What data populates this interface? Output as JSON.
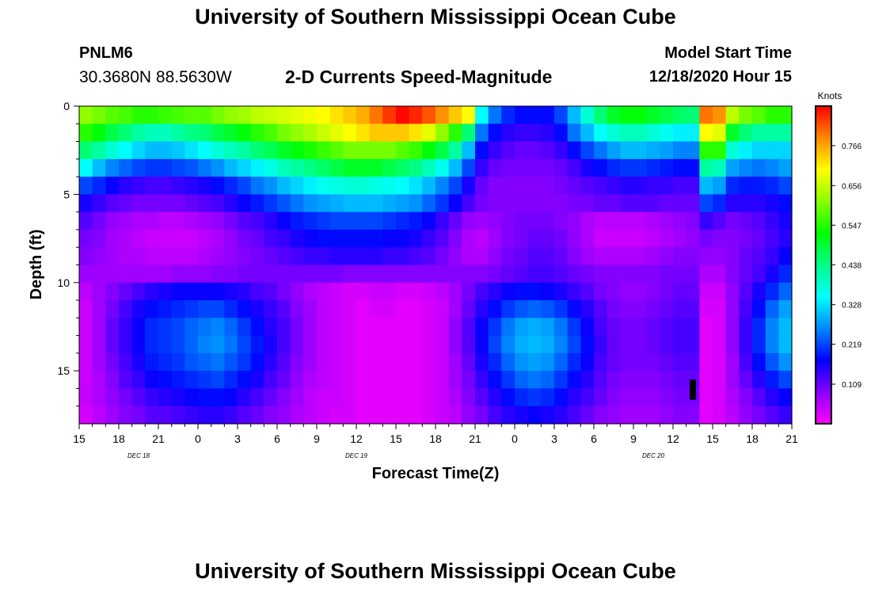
{
  "header": {
    "title": "University of Southern Mississippi Ocean Cube",
    "station_id": "PNLM6",
    "coordinates": "30.3680N 88.5630W",
    "subtitle": "2-D Currents Speed-Magnitude",
    "model_start_label": "Model Start Time",
    "model_start_value": "12/18/2020 Hour 15"
  },
  "footer": {
    "title": "University of Southern Mississippi Ocean Cube"
  },
  "colors": {
    "background": "#ffffff",
    "axis": "#000000",
    "marker": "#000000"
  },
  "chart_data": {
    "type": "heatmap",
    "xlabel": "Forecast Time(Z)",
    "ylabel": "Depth (ft)",
    "x_hours_range": [
      0,
      54
    ],
    "y_depth_range": [
      0,
      18
    ],
    "x_ticks": [
      "15",
      "18",
      "21",
      "0",
      "3",
      "6",
      "9",
      "12",
      "15",
      "18",
      "21",
      "0",
      "3",
      "6",
      "9",
      "12",
      "15",
      "18",
      "21"
    ],
    "y_ticks": [
      0,
      5,
      10,
      15
    ],
    "date_labels": [
      {
        "label": "DEC 18",
        "hour": 4.5
      },
      {
        "label": "DEC 19",
        "hour": 21
      },
      {
        "label": "DEC 20",
        "hour": 43.5
      }
    ],
    "colorbar": {
      "title": "Knots",
      "min": 0,
      "max": 0.875,
      "ticks": [
        "0.766",
        "0.656",
        "0.547",
        "0.438",
        "0.328",
        "0.219",
        "0.109"
      ],
      "tick_values": [
        0.766,
        0.656,
        0.547,
        0.438,
        0.328,
        0.219,
        0.109
      ],
      "colormap": [
        "#ff00ff",
        "#8800ff",
        "#0000ff",
        "#0088ff",
        "#00ffff",
        "#00ff88",
        "#00ff00",
        "#88ff00",
        "#ffff00",
        "#ff8800",
        "#ff0000"
      ]
    },
    "depth_layers_ft": [
      0.5,
      1.5,
      2.5,
      3.5,
      4.5,
      5.5,
      6.5,
      7.5,
      8.5,
      9.5,
      10.5,
      11.5,
      12.5,
      13.5,
      14.5,
      15.5,
      16.5,
      17.5
    ],
    "series": [
      {
        "hours": [
          0,
          1,
          2,
          3,
          4,
          5,
          6,
          7,
          8,
          9,
          10,
          11,
          12,
          13,
          14,
          15,
          16,
          17,
          18,
          19,
          20,
          21,
          22,
          23,
          24,
          25,
          26,
          27,
          28,
          29,
          30,
          31,
          32,
          33,
          34,
          35,
          36,
          37,
          38,
          39,
          40,
          41,
          42,
          43,
          44,
          45,
          46,
          47,
          48,
          49,
          50,
          51,
          52,
          53
        ]
      },
      {
        "knots_row_0": [
          0.62,
          0.6,
          0.58,
          0.57,
          0.55,
          0.55,
          0.56,
          0.57,
          0.58,
          0.58,
          0.6,
          0.62,
          0.63,
          0.65,
          0.66,
          0.67,
          0.68,
          0.69,
          0.7,
          0.72,
          0.74,
          0.76,
          0.8,
          0.84,
          0.87,
          0.85,
          0.82,
          0.78,
          0.74,
          0.7,
          0.35,
          0.25,
          0.2,
          0.18,
          0.18,
          0.18,
          0.22,
          0.3,
          0.38,
          0.45,
          0.5,
          0.52,
          0.52,
          0.5,
          0.48,
          0.46,
          0.45,
          0.8,
          0.78,
          0.65,
          0.6,
          0.58,
          0.55,
          0.55
        ]
      },
      {
        "knots_row_1": [
          0.55,
          0.52,
          0.48,
          0.45,
          0.42,
          0.4,
          0.4,
          0.42,
          0.44,
          0.45,
          0.48,
          0.5,
          0.52,
          0.55,
          0.57,
          0.6,
          0.62,
          0.64,
          0.66,
          0.68,
          0.7,
          0.72,
          0.74,
          0.74,
          0.74,
          0.72,
          0.68,
          0.62,
          0.55,
          0.45,
          0.25,
          0.18,
          0.15,
          0.14,
          0.14,
          0.15,
          0.18,
          0.25,
          0.3,
          0.35,
          0.38,
          0.4,
          0.4,
          0.38,
          0.36,
          0.34,
          0.34,
          0.7,
          0.68,
          0.5,
          0.45,
          0.42,
          0.42,
          0.42
        ]
      },
      {
        "knots_row_2": [
          0.45,
          0.42,
          0.38,
          0.35,
          0.32,
          0.3,
          0.3,
          0.31,
          0.33,
          0.35,
          0.38,
          0.4,
          0.42,
          0.45,
          0.47,
          0.5,
          0.52,
          0.54,
          0.56,
          0.58,
          0.6,
          0.6,
          0.6,
          0.6,
          0.58,
          0.56,
          0.52,
          0.48,
          0.42,
          0.3,
          0.18,
          0.14,
          0.12,
          0.11,
          0.11,
          0.12,
          0.14,
          0.18,
          0.22,
          0.25,
          0.28,
          0.3,
          0.3,
          0.29,
          0.28,
          0.26,
          0.26,
          0.55,
          0.55,
          0.38,
          0.34,
          0.32,
          0.32,
          0.32
        ]
      },
      {
        "knots_row_3": [
          0.35,
          0.3,
          0.26,
          0.24,
          0.22,
          0.21,
          0.21,
          0.22,
          0.23,
          0.25,
          0.27,
          0.3,
          0.32,
          0.34,
          0.37,
          0.4,
          0.42,
          0.44,
          0.46,
          0.48,
          0.5,
          0.5,
          0.5,
          0.48,
          0.46,
          0.44,
          0.4,
          0.36,
          0.3,
          0.22,
          0.14,
          0.11,
          0.1,
          0.1,
          0.1,
          0.1,
          0.11,
          0.13,
          0.16,
          0.18,
          0.2,
          0.21,
          0.21,
          0.2,
          0.19,
          0.18,
          0.18,
          0.42,
          0.4,
          0.28,
          0.26,
          0.25,
          0.26,
          0.28
        ]
      },
      {
        "knots_row_4": [
          0.22,
          0.2,
          0.17,
          0.15,
          0.14,
          0.13,
          0.13,
          0.14,
          0.15,
          0.16,
          0.18,
          0.2,
          0.22,
          0.25,
          0.27,
          0.3,
          0.32,
          0.34,
          0.36,
          0.37,
          0.38,
          0.38,
          0.37,
          0.36,
          0.35,
          0.33,
          0.3,
          0.26,
          0.22,
          0.16,
          0.11,
          0.09,
          0.09,
          0.09,
          0.09,
          0.09,
          0.1,
          0.11,
          0.12,
          0.13,
          0.14,
          0.15,
          0.15,
          0.14,
          0.14,
          0.13,
          0.13,
          0.3,
          0.28,
          0.2,
          0.19,
          0.19,
          0.2,
          0.22
        ]
      },
      {
        "knots_row_5": [
          0.16,
          0.14,
          0.12,
          0.11,
          0.1,
          0.1,
          0.1,
          0.1,
          0.11,
          0.12,
          0.13,
          0.15,
          0.17,
          0.19,
          0.21,
          0.23,
          0.25,
          0.27,
          0.28,
          0.29,
          0.3,
          0.3,
          0.3,
          0.29,
          0.28,
          0.27,
          0.24,
          0.21,
          0.17,
          0.13,
          0.1,
          0.09,
          0.09,
          0.09,
          0.09,
          0.09,
          0.09,
          0.1,
          0.1,
          0.11,
          0.11,
          0.12,
          0.12,
          0.12,
          0.11,
          0.11,
          0.11,
          0.22,
          0.2,
          0.15,
          0.15,
          0.15,
          0.16,
          0.18
        ]
      },
      {
        "knots_row_6": [
          0.12,
          0.1,
          0.08,
          0.07,
          0.06,
          0.06,
          0.05,
          0.05,
          0.06,
          0.07,
          0.08,
          0.1,
          0.12,
          0.13,
          0.15,
          0.17,
          0.19,
          0.2,
          0.21,
          0.22,
          0.22,
          0.22,
          0.22,
          0.21,
          0.2,
          0.19,
          0.17,
          0.14,
          0.11,
          0.08,
          0.07,
          0.08,
          0.09,
          0.1,
          0.1,
          0.1,
          0.09,
          0.08,
          0.06,
          0.05,
          0.05,
          0.05,
          0.05,
          0.06,
          0.07,
          0.08,
          0.09,
          0.14,
          0.12,
          0.1,
          0.11,
          0.12,
          0.14,
          0.16
        ]
      },
      {
        "knots_row_7": [
          0.1,
          0.09,
          0.07,
          0.06,
          0.05,
          0.04,
          0.04,
          0.04,
          0.04,
          0.05,
          0.06,
          0.08,
          0.1,
          0.11,
          0.13,
          0.14,
          0.16,
          0.17,
          0.18,
          0.18,
          0.18,
          0.18,
          0.18,
          0.17,
          0.17,
          0.16,
          0.14,
          0.12,
          0.09,
          0.06,
          0.05,
          0.07,
          0.09,
          0.1,
          0.11,
          0.11,
          0.1,
          0.08,
          0.06,
          0.04,
          0.04,
          0.04,
          0.04,
          0.05,
          0.06,
          0.07,
          0.08,
          0.1,
          0.09,
          0.09,
          0.1,
          0.11,
          0.13,
          0.15
        ]
      },
      {
        "knots_row_8": [
          0.09,
          0.08,
          0.07,
          0.06,
          0.06,
          0.05,
          0.05,
          0.05,
          0.05,
          0.06,
          0.07,
          0.08,
          0.09,
          0.1,
          0.11,
          0.12,
          0.13,
          0.14,
          0.14,
          0.15,
          0.15,
          0.15,
          0.15,
          0.14,
          0.14,
          0.13,
          0.12,
          0.1,
          0.08,
          0.06,
          0.06,
          0.08,
          0.1,
          0.11,
          0.12,
          0.12,
          0.11,
          0.09,
          0.07,
          0.06,
          0.06,
          0.06,
          0.06,
          0.07,
          0.08,
          0.09,
          0.09,
          0.08,
          0.08,
          0.09,
          0.11,
          0.12,
          0.14,
          0.17
        ]
      },
      {
        "knots_row_9": [
          0.07,
          0.07,
          0.07,
          0.07,
          0.07,
          0.07,
          0.07,
          0.08,
          0.08,
          0.08,
          0.09,
          0.09,
          0.1,
          0.1,
          0.1,
          0.1,
          0.1,
          0.1,
          0.1,
          0.1,
          0.09,
          0.09,
          0.09,
          0.09,
          0.09,
          0.09,
          0.09,
          0.09,
          0.09,
          0.09,
          0.09,
          0.1,
          0.11,
          0.12,
          0.13,
          0.13,
          0.12,
          0.11,
          0.1,
          0.09,
          0.09,
          0.09,
          0.09,
          0.09,
          0.1,
          0.1,
          0.1,
          0.06,
          0.06,
          0.09,
          0.11,
          0.13,
          0.16,
          0.2
        ]
      },
      {
        "knots_row_10": [
          0.05,
          0.07,
          0.09,
          0.11,
          0.13,
          0.15,
          0.16,
          0.17,
          0.17,
          0.17,
          0.17,
          0.16,
          0.15,
          0.13,
          0.12,
          0.1,
          0.08,
          0.06,
          0.05,
          0.04,
          0.03,
          0.03,
          0.04,
          0.04,
          0.03,
          0.03,
          0.04,
          0.05,
          0.07,
          0.1,
          0.13,
          0.15,
          0.17,
          0.18,
          0.18,
          0.17,
          0.16,
          0.14,
          0.12,
          0.1,
          0.09,
          0.08,
          0.08,
          0.09,
          0.1,
          0.11,
          0.11,
          0.04,
          0.04,
          0.08,
          0.12,
          0.16,
          0.2,
          0.24
        ]
      },
      {
        "knots_row_11": [
          0.04,
          0.07,
          0.1,
          0.13,
          0.16,
          0.18,
          0.19,
          0.2,
          0.21,
          0.22,
          0.22,
          0.2,
          0.18,
          0.16,
          0.14,
          0.12,
          0.09,
          0.07,
          0.05,
          0.04,
          0.03,
          0.02,
          0.03,
          0.03,
          0.02,
          0.02,
          0.03,
          0.04,
          0.07,
          0.11,
          0.15,
          0.18,
          0.21,
          0.23,
          0.24,
          0.23,
          0.21,
          0.18,
          0.15,
          0.12,
          0.1,
          0.09,
          0.09,
          0.1,
          0.11,
          0.12,
          0.12,
          0.03,
          0.03,
          0.08,
          0.13,
          0.18,
          0.24,
          0.28
        ]
      },
      {
        "knots_row_12": [
          0.04,
          0.07,
          0.11,
          0.14,
          0.17,
          0.2,
          0.21,
          0.22,
          0.24,
          0.25,
          0.26,
          0.24,
          0.21,
          0.18,
          0.15,
          0.13,
          0.1,
          0.07,
          0.05,
          0.04,
          0.03,
          0.02,
          0.02,
          0.02,
          0.02,
          0.02,
          0.03,
          0.04,
          0.08,
          0.12,
          0.17,
          0.21,
          0.25,
          0.28,
          0.29,
          0.28,
          0.25,
          0.21,
          0.17,
          0.13,
          0.11,
          0.1,
          0.1,
          0.11,
          0.12,
          0.13,
          0.13,
          0.02,
          0.03,
          0.08,
          0.14,
          0.2,
          0.26,
          0.3
        ]
      },
      {
        "knots_row_13": [
          0.04,
          0.07,
          0.11,
          0.14,
          0.17,
          0.2,
          0.21,
          0.22,
          0.24,
          0.26,
          0.27,
          0.25,
          0.22,
          0.19,
          0.16,
          0.13,
          0.1,
          0.07,
          0.05,
          0.04,
          0.03,
          0.02,
          0.02,
          0.02,
          0.02,
          0.02,
          0.03,
          0.04,
          0.08,
          0.12,
          0.17,
          0.22,
          0.26,
          0.29,
          0.3,
          0.29,
          0.26,
          0.22,
          0.18,
          0.14,
          0.11,
          0.1,
          0.1,
          0.11,
          0.12,
          0.13,
          0.13,
          0.02,
          0.03,
          0.08,
          0.14,
          0.2,
          0.26,
          0.3
        ]
      },
      {
        "knots_row_14": [
          0.04,
          0.07,
          0.1,
          0.13,
          0.16,
          0.19,
          0.2,
          0.21,
          0.23,
          0.24,
          0.25,
          0.23,
          0.21,
          0.18,
          0.15,
          0.12,
          0.09,
          0.07,
          0.05,
          0.04,
          0.03,
          0.02,
          0.02,
          0.02,
          0.02,
          0.02,
          0.03,
          0.04,
          0.07,
          0.11,
          0.16,
          0.2,
          0.24,
          0.27,
          0.28,
          0.27,
          0.24,
          0.2,
          0.17,
          0.13,
          0.11,
          0.1,
          0.1,
          0.1,
          0.11,
          0.12,
          0.12,
          0.02,
          0.03,
          0.07,
          0.13,
          0.18,
          0.23,
          0.27
        ]
      },
      {
        "knots_row_15": [
          0.04,
          0.06,
          0.09,
          0.12,
          0.14,
          0.17,
          0.18,
          0.19,
          0.2,
          0.21,
          0.22,
          0.2,
          0.18,
          0.16,
          0.13,
          0.11,
          0.08,
          0.06,
          0.05,
          0.04,
          0.03,
          0.02,
          0.02,
          0.02,
          0.02,
          0.02,
          0.03,
          0.04,
          0.07,
          0.1,
          0.14,
          0.18,
          0.21,
          0.24,
          0.25,
          0.24,
          0.21,
          0.18,
          0.15,
          0.12,
          0.1,
          0.09,
          0.09,
          0.09,
          0.1,
          0.11,
          0.11,
          0.02,
          0.03,
          0.07,
          0.11,
          0.15,
          0.19,
          0.22
        ]
      },
      {
        "knots_row_16": [
          0.04,
          0.06,
          0.08,
          0.1,
          0.12,
          0.14,
          0.15,
          0.16,
          0.17,
          0.18,
          0.18,
          0.17,
          0.15,
          0.13,
          0.11,
          0.09,
          0.07,
          0.05,
          0.04,
          0.04,
          0.03,
          0.02,
          0.02,
          0.02,
          0.02,
          0.02,
          0.03,
          0.04,
          0.06,
          0.09,
          0.12,
          0.15,
          0.18,
          0.2,
          0.21,
          0.2,
          0.18,
          0.15,
          0.13,
          0.11,
          0.09,
          0.08,
          0.08,
          0.08,
          0.09,
          0.1,
          0.1,
          0.02,
          0.03,
          0.06,
          0.09,
          0.12,
          0.15,
          0.17
        ]
      },
      {
        "knots_row_17": [
          0.03,
          0.05,
          0.07,
          0.09,
          0.1,
          0.12,
          0.12,
          0.13,
          0.14,
          0.15,
          0.15,
          0.14,
          0.12,
          0.11,
          0.09,
          0.08,
          0.06,
          0.05,
          0.04,
          0.03,
          0.03,
          0.02,
          0.02,
          0.02,
          0.02,
          0.02,
          0.03,
          0.04,
          0.05,
          0.08,
          0.1,
          0.13,
          0.15,
          0.16,
          0.17,
          0.16,
          0.15,
          0.13,
          0.11,
          0.09,
          0.08,
          0.07,
          0.07,
          0.07,
          0.08,
          0.09,
          0.09,
          0.02,
          0.03,
          0.05,
          0.08,
          0.1,
          0.12,
          0.14
        ]
      }
    ],
    "marker": {
      "hour": 46.5,
      "depth_from": 15.5,
      "depth_to": 16.5
    }
  }
}
